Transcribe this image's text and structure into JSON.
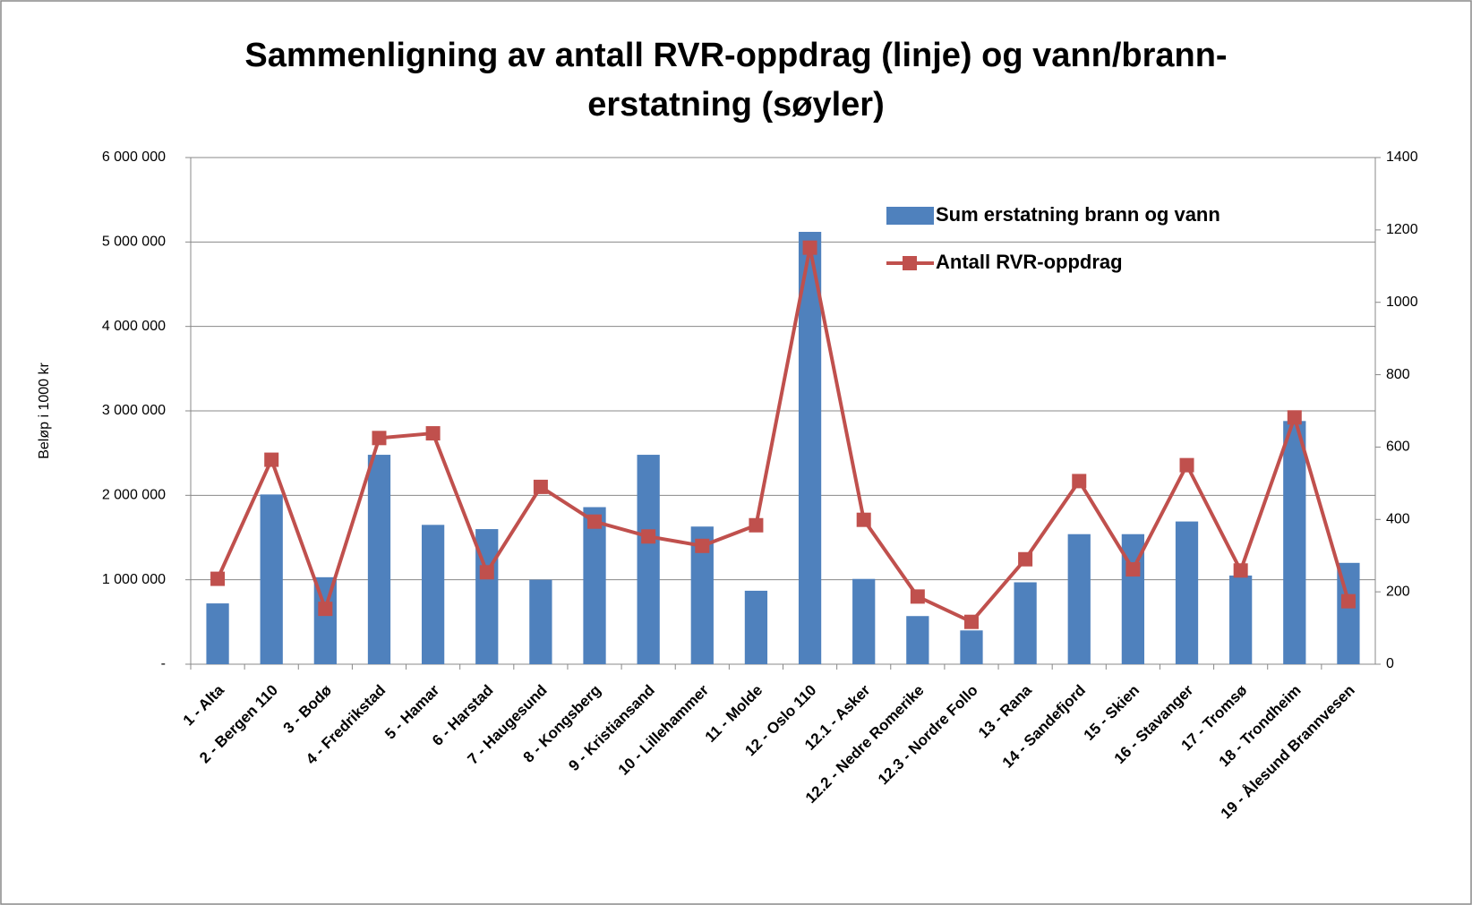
{
  "chart_data": {
    "type": "bar_line",
    "title": [
      "Sammenligning av antall RVR-oppdrag (linje) og vann/brann-",
      "erstatning (søyler)"
    ],
    "y_label": "Beløp i 1000 kr",
    "categories": [
      "1 - Alta",
      "2 - Bergen 110",
      "3 - Bodø",
      "4 - Fredrikstad",
      "5 - Hamar",
      "6 - Harstad",
      "7 - Haugesund",
      "8 - Kongsberg",
      "9 - Kristiansand",
      "10 - Lillehammer",
      "11 - Molde",
      "12 - Oslo 110",
      "12.1 - Asker",
      "12.2 - Nedre Romerike",
      "12.3 - Nordre Follo",
      "13 - Rana",
      "14 - Sandefjord",
      "15 - Skien",
      "16 - Stavanger",
      "17 - Tromsø",
      "18 - Trondheim",
      "19 - Ålesund Brannvesen"
    ],
    "series": [
      {
        "name": "Sum erstatning brann og vann",
        "type": "bar",
        "color": "#4f81bd",
        "axis": "y",
        "values": [
          720000,
          2010000,
          1030000,
          2480000,
          1650000,
          1600000,
          1000000,
          1860000,
          2480000,
          1630000,
          870000,
          5120000,
          1010000,
          570000,
          400000,
          970000,
          1540000,
          1540000,
          1690000,
          1050000,
          2880000,
          1200000
        ]
      },
      {
        "name": "Antall RVR-oppdrag",
        "type": "line",
        "color": "#c0504d",
        "axis": "y2",
        "values": [
          236,
          565,
          153,
          625,
          638,
          254,
          490,
          394,
          353,
          327,
          384,
          1151,
          399,
          187,
          117,
          290,
          506,
          262,
          550,
          259,
          682,
          174
        ]
      }
    ],
    "ylim": [
      0,
      6000000
    ],
    "yticks": [
      {
        "value": 0,
        "label": "-"
      },
      {
        "value": 1000000,
        "label": "1 000 000"
      },
      {
        "value": 2000000,
        "label": "2 000 000"
      },
      {
        "value": 3000000,
        "label": "3 000 000"
      },
      {
        "value": 4000000,
        "label": "4 000 000"
      },
      {
        "value": 5000000,
        "label": "5 000 000"
      },
      {
        "value": 6000000,
        "label": "6 000 000"
      }
    ],
    "y2lim": [
      0,
      1400
    ],
    "y2ticks": [
      0,
      200,
      400,
      600,
      800,
      1000,
      1200,
      1400
    ],
    "grid": true,
    "legend": "top-right"
  }
}
